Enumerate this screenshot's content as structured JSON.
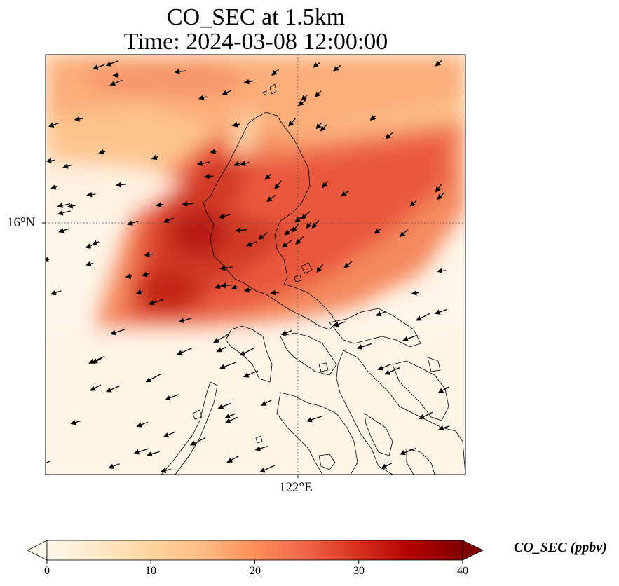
{
  "title_line1": "CO_SEC at 1.5km",
  "title_line2": "Time: 2024-03-08 12:00:00",
  "axes": {
    "lat_label": "16°N",
    "lon_label": "122°E"
  },
  "colorbar": {
    "label": "CO_SEC (ppbv)",
    "min": 0,
    "max": 40,
    "ticks": [
      "0",
      "10",
      "20",
      "30",
      "40"
    ],
    "extend": "both",
    "colormap": "OrRd",
    "colors": [
      "#fff7ec",
      "#fee8c8",
      "#fdd49e",
      "#fdbb84",
      "#fc8d59",
      "#ef6548",
      "#d7301f",
      "#b30000",
      "#7f0000"
    ]
  },
  "map": {
    "gridlines": "dotted",
    "coastlines": true,
    "wind_vectors": true,
    "plume_description_colors": {
      "high": "#c61c12",
      "mid": "#ef6548",
      "low": "#fdd49e",
      "background": "#fff5e8"
    }
  }
}
